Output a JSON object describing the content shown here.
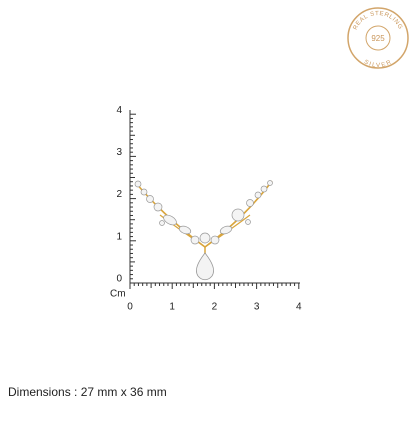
{
  "badge": {
    "top": "REAL STERLING",
    "center": "925",
    "bottom": "SILVER"
  },
  "ruler": {
    "unit": "Cm",
    "vertical_labels": [
      "4",
      "3",
      "2",
      "1",
      "0"
    ],
    "horizontal_labels": [
      "0",
      "1",
      "2",
      "3",
      "4"
    ]
  },
  "caption": "Dimensions : 27 mm x 36 mm"
}
